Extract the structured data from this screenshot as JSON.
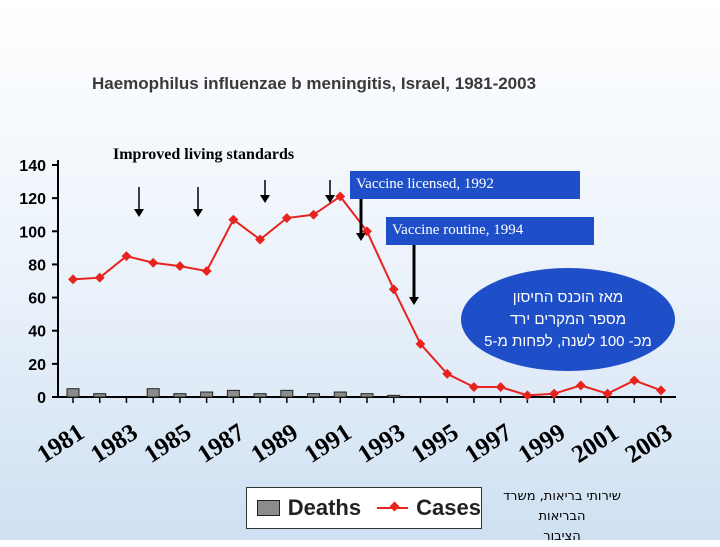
{
  "chart_data": {
    "type": "line",
    "title": "Haemophilus influenzae b meningitis, Israel, 1981-2003",
    "x": [
      1981,
      1982,
      1983,
      1984,
      1985,
      1986,
      1987,
      1988,
      1989,
      1990,
      1991,
      1992,
      1993,
      1994,
      1995,
      1996,
      1997,
      1998,
      1999,
      2000,
      2001,
      2002,
      2003
    ],
    "x_tick_labels": [
      "1981",
      "1983",
      "1985",
      "1987",
      "1989",
      "1991",
      "1993",
      "1995",
      "1997",
      "1999",
      "2001",
      "2003"
    ],
    "x_tick_values": [
      1981,
      1983,
      1985,
      1987,
      1989,
      1991,
      1993,
      1995,
      1997,
      1999,
      2001,
      2003
    ],
    "ylim": [
      0,
      140
    ],
    "y_ticks": [
      0,
      20,
      40,
      60,
      80,
      100,
      120,
      140
    ],
    "grid": false,
    "series": [
      {
        "name": "Deaths",
        "type": "bar",
        "color": "#8c8c8c",
        "values": [
          5,
          2,
          null,
          5,
          2,
          3,
          4,
          2,
          4,
          2,
          3,
          2,
          1,
          null,
          null,
          null,
          null,
          null,
          null,
          null,
          null,
          null,
          null
        ]
      },
      {
        "name": "Cases",
        "type": "line",
        "color": "#e8231d",
        "values": [
          71,
          72,
          85,
          81,
          79,
          76,
          107,
          95,
          108,
          110,
          121,
          100,
          65,
          32,
          14,
          6,
          6,
          1,
          2,
          7,
          2,
          10,
          4
        ]
      }
    ]
  },
  "annotations": {
    "improved_living": "Improved living standards",
    "vaccine_licensed": "Vaccine licensed, 1992",
    "vaccine_routine": "Vaccine routine, 1994",
    "oval_line1": "מאז הוכנס החיסון",
    "oval_line2": "מספר המקרים ירד",
    "oval_line3": "מכ- 100 לשנה, לפחות מ-5"
  },
  "legend": {
    "deaths": "Deaths",
    "cases": "Cases"
  },
  "source": {
    "line1": "שירותי בריאות, משרד הבריאות",
    "line2": "הציבור"
  },
  "colors": {
    "cases": "#e8231d",
    "deaths": "#8c8c8c",
    "callout": "#1f4fc8"
  }
}
